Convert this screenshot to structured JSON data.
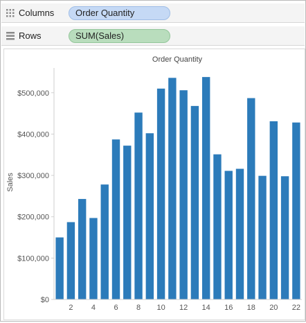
{
  "shelves": {
    "columns": {
      "label": "Columns",
      "pill": "Order Quantity"
    },
    "rows": {
      "label": "Rows",
      "pill": "SUM(Sales)"
    }
  },
  "colors": {
    "bar": "#2c7bba",
    "column_pill": "#c5d9f5",
    "row_pill": "#b9ddbd"
  },
  "chart_data": {
    "type": "bar",
    "title": "Order Quantity",
    "xlabel": "",
    "ylabel": "Sales",
    "categories": [
      1,
      2,
      3,
      4,
      5,
      6,
      7,
      8,
      9,
      10,
      11,
      12,
      13,
      14,
      15,
      16,
      17,
      18,
      19,
      20,
      21,
      22
    ],
    "x_tick_labels": [
      2,
      4,
      6,
      8,
      10,
      12,
      14,
      16,
      18,
      20,
      22
    ],
    "values": [
      150000,
      187000,
      243000,
      197000,
      278000,
      387000,
      372000,
      452000,
      402000,
      510000,
      536000,
      506000,
      468000,
      538000,
      351000,
      311000,
      316000,
      487000,
      299000,
      431000,
      298000,
      428000
    ],
    "ylim": [
      0,
      560000
    ],
    "yticks": [
      {
        "value": 0,
        "label": "$0"
      },
      {
        "value": 100000,
        "label": "$100,000"
      },
      {
        "value": 200000,
        "label": "$200,000"
      },
      {
        "value": 300000,
        "label": "$300,000"
      },
      {
        "value": 400000,
        "label": "$400,000"
      },
      {
        "value": 500000,
        "label": "$500,000"
      }
    ],
    "grid": false
  }
}
